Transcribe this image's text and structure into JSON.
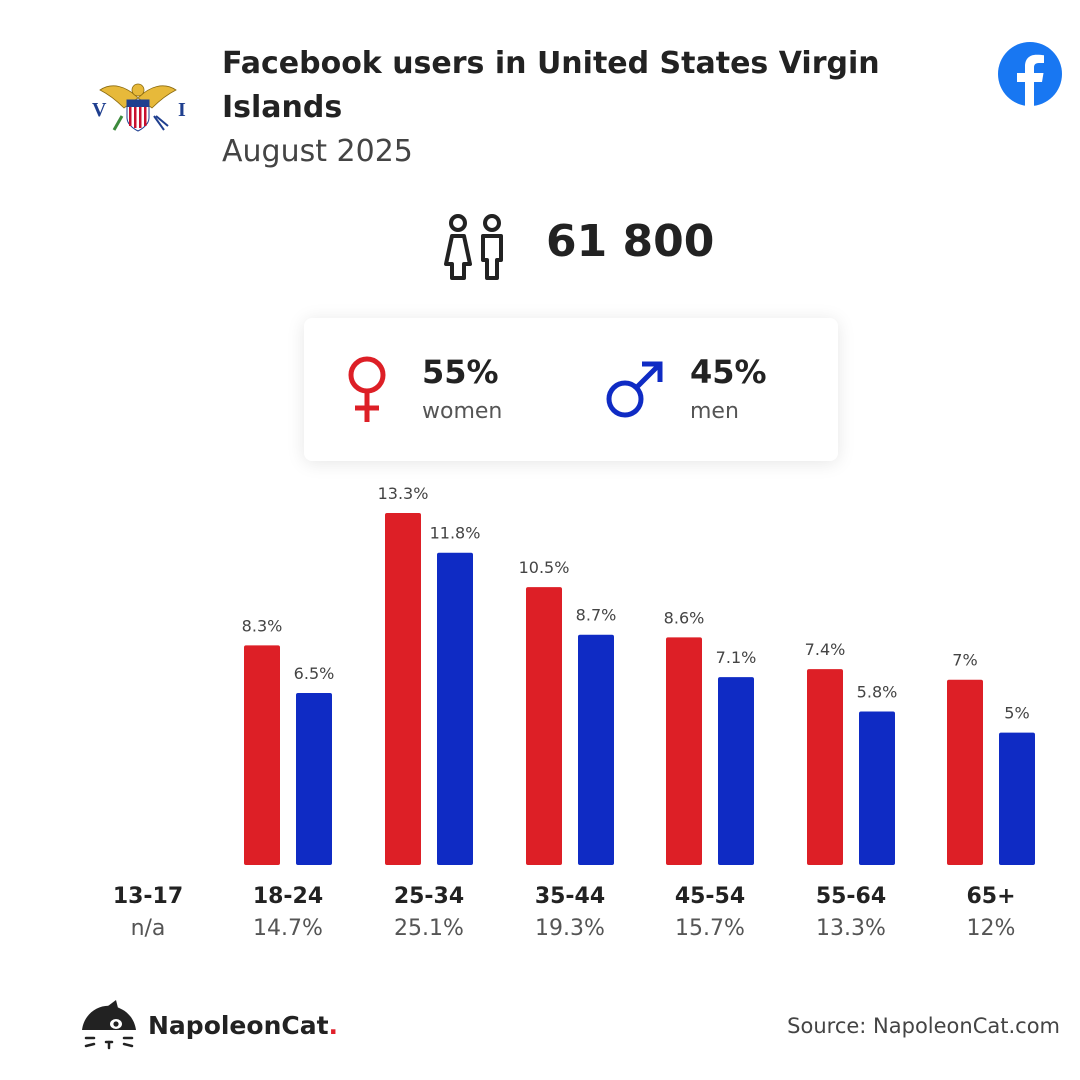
{
  "header": {
    "title": "Facebook users in United States Virgin Islands",
    "subtitle": "August 2025"
  },
  "icons": {
    "flag": "usvi-flag-icon",
    "facebook": "facebook-logo-icon",
    "people": "people-icon",
    "female": "female-symbol-icon",
    "male": "male-symbol-icon",
    "brand": "napoleoncat-logo-icon"
  },
  "summary": {
    "total_users": "61 800",
    "women": {
      "pct": "55%",
      "label": "women"
    },
    "men": {
      "pct": "45%",
      "label": "men"
    }
  },
  "colors": {
    "women": "#dd1f26",
    "men": "#0f2bc4",
    "facebook": "#1877f2"
  },
  "chart_data": {
    "type": "bar",
    "categories": [
      "13-17",
      "18-24",
      "25-34",
      "35-44",
      "45-54",
      "55-64",
      "65+"
    ],
    "category_totals": [
      "n/a",
      "14.7%",
      "25.1%",
      "19.3%",
      "15.7%",
      "13.3%",
      "12%"
    ],
    "series": [
      {
        "name": "women",
        "values": [
          null,
          8.3,
          13.3,
          10.5,
          8.6,
          7.4,
          7
        ],
        "labels": [
          "",
          "8.3%",
          "13.3%",
          "10.5%",
          "8.6%",
          "7.4%",
          "7%"
        ]
      },
      {
        "name": "men",
        "values": [
          null,
          6.5,
          11.8,
          8.7,
          7.1,
          5.8,
          5
        ],
        "labels": [
          "",
          "6.5%",
          "11.8%",
          "8.7%",
          "7.1%",
          "5.8%",
          "5%"
        ]
      }
    ],
    "title": "",
    "xlabel": "",
    "ylabel": "",
    "ylim": [
      0,
      13.3
    ],
    "grid": false
  },
  "footer": {
    "brand_name": "NapoleonCat",
    "brand_dot": ".",
    "source": "Source: NapoleonCat.com"
  }
}
